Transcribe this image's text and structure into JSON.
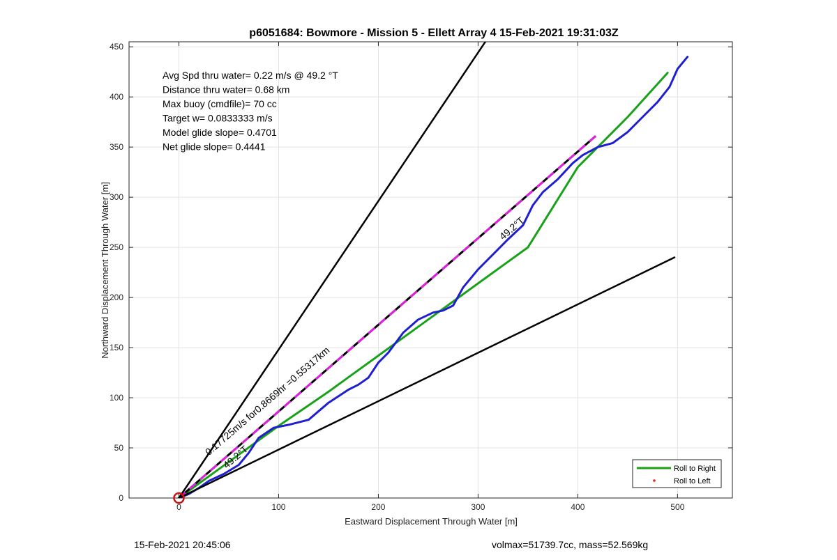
{
  "chart_data": {
    "type": "line",
    "title": "p6051684: Bowmore - Mission 5 - Ellett Array 4 15-Feb-2021 19:31:03Z",
    "xlabel": "Eastward Displacement Through Water [m]",
    "ylabel": "Northward Displacement Through Water [m]",
    "xlim": [
      -50,
      555
    ],
    "ylim": [
      0,
      455
    ],
    "xticks": [
      0,
      100,
      200,
      300,
      400,
      500
    ],
    "yticks": [
      0,
      50,
      100,
      150,
      200,
      250,
      300,
      350,
      400,
      450
    ],
    "xtick_labels": [
      "0",
      "100",
      "200",
      "300",
      "400",
      "500"
    ],
    "ytick_labels": [
      "0",
      "50",
      "100",
      "150",
      "200",
      "250",
      "300",
      "350",
      "400",
      "450"
    ],
    "grid": true,
    "stats": [
      "Avg Spd thru water=  0.22 m/s @  49.2 °T",
      "Distance thru water=  0.68 km",
      "Max buoy (cmdfile)= 70 cc",
      "Target w= 0.0833333 m/s",
      "Model glide slope= 0.4701",
      "Net glide slope= 0.4441"
    ],
    "annotations": [
      {
        "text": "0.17725m/s for0.8669hr =0.55317km",
        "x": 30,
        "y": 42,
        "angle_deg": 40.8
      },
      {
        "text": "49.2°T",
        "x": 48,
        "y": 29,
        "angle_deg": 40.8
      },
      {
        "text": "49.2°T",
        "x": 325,
        "y": 257,
        "angle_deg": 40.8
      }
    ],
    "series": [
      {
        "name": "Roll to Right",
        "color": "#1aa11a",
        "x": [
          0,
          50,
          100,
          150,
          200,
          250,
          300,
          350,
          400,
          450,
          490
        ],
        "y": [
          0,
          36,
          72,
          106,
          142,
          178,
          214,
          250,
          330,
          380,
          424
        ]
      },
      {
        "name": "Roll to Left",
        "color": "#e02020",
        "x": [
          0
        ],
        "y": [
          0
        ]
      },
      {
        "color": "#1f1fd0",
        "x": [
          0,
          10,
          20,
          30,
          45,
          60,
          70,
          80,
          95,
          110,
          130,
          150,
          170,
          180,
          190,
          200,
          210,
          225,
          240,
          255,
          265,
          275,
          285,
          300,
          315,
          330,
          345,
          355,
          365,
          380,
          395,
          405,
          420,
          435,
          450,
          465,
          480,
          492,
          500,
          510
        ],
        "y": [
          0,
          4,
          10,
          17,
          24,
          33,
          45,
          60,
          70,
          73,
          78,
          95,
          108,
          113,
          120,
          135,
          145,
          165,
          178,
          185,
          187,
          192,
          210,
          228,
          243,
          258,
          272,
          292,
          305,
          318,
          334,
          342,
          350,
          354,
          365,
          380,
          395,
          410,
          428,
          440
        ]
      },
      {
        "color": "#e020e0",
        "dash": "dashed",
        "x": [
          0,
          418
        ],
        "y": [
          0,
          361
        ]
      },
      {
        "color": "#000000",
        "x": [
          0,
          310
        ],
        "y": [
          0,
          459
        ]
      },
      {
        "color": "#000000",
        "x": [
          0,
          497
        ],
        "y": [
          0,
          240
        ]
      }
    ],
    "origin_marker": {
      "x": 0,
      "y": 0,
      "color": "#d01010"
    },
    "legend": {
      "position": "bottom-right",
      "entries": [
        {
          "label": "Roll to Right",
          "color": "#1aa11a",
          "marker": "line"
        },
        {
          "label": "Roll to Left",
          "color": "#e02020",
          "marker": "dot"
        }
      ]
    }
  },
  "footer": {
    "timestamp": "15-Feb-2021 20:45:06",
    "summary": "volmax=51739.7cc, mass=52.569kg"
  }
}
